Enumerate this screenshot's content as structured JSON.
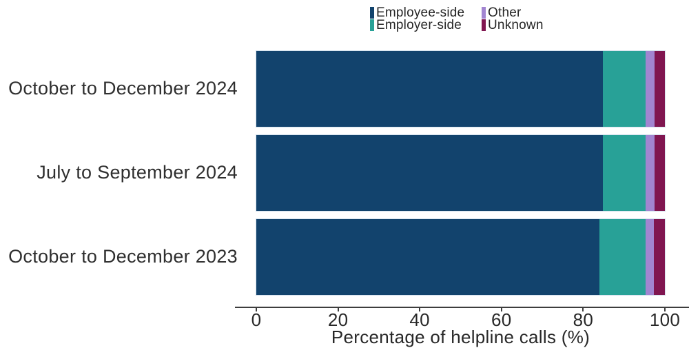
{
  "legend": {
    "items": [
      {
        "label": "Employee-side",
        "color": "#12436D"
      },
      {
        "label": "Employer-side",
        "color": "#28A197"
      },
      {
        "label": "Other",
        "color": "#A285D1"
      },
      {
        "label": "Unknown",
        "color": "#801650"
      }
    ]
  },
  "axis": {
    "xlabel": "Percentage of helpline calls (%)",
    "tick_labels": [
      "0",
      "20",
      "40",
      "60",
      "80",
      "100"
    ]
  },
  "chart_data": {
    "type": "bar",
    "orientation": "horizontal",
    "stacked": true,
    "categories": [
      "October to December 2024",
      "July to September 2024",
      "October to December 2023"
    ],
    "series": [
      {
        "name": "Employee-side",
        "color": "#12436D",
        "values": [
          84.8,
          84.9,
          84.0
        ]
      },
      {
        "name": "Employer-side",
        "color": "#28A197",
        "values": [
          10.5,
          10.4,
          11.3
        ]
      },
      {
        "name": "Other",
        "color": "#A285D1",
        "values": [
          2.2,
          2.2,
          2.0
        ]
      },
      {
        "name": "Unknown",
        "color": "#801650",
        "values": [
          2.5,
          2.5,
          2.7
        ]
      }
    ],
    "xlabel": "Percentage of helpline calls (%)",
    "x_ticks": [
      0,
      20,
      40,
      60,
      80,
      100
    ],
    "xlim": [
      0,
      100
    ],
    "grid": false,
    "legend_position": "top-center"
  }
}
